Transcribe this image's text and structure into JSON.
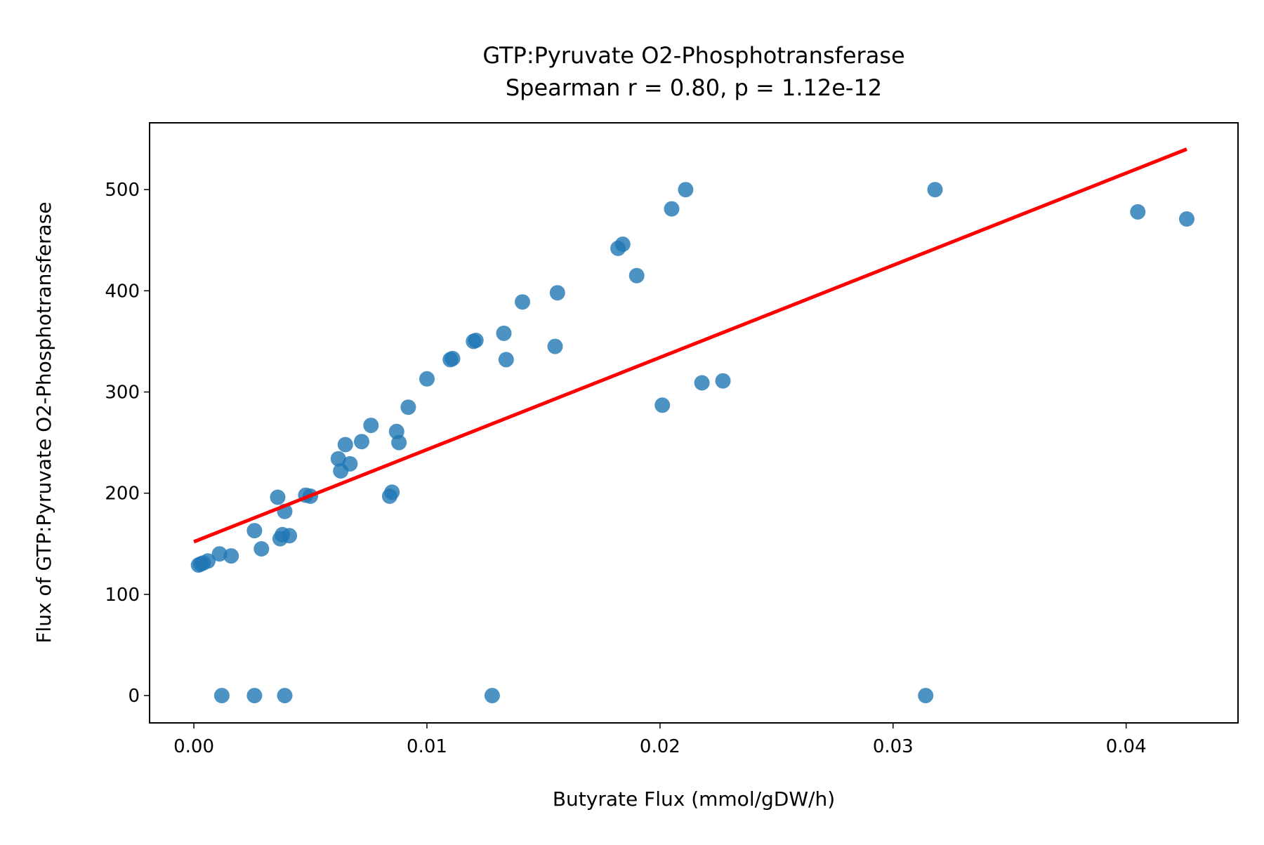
{
  "chart_data": {
    "type": "scatter",
    "title": "GTP:Pyruvate O2-Phosphotransferase",
    "subtitle": "Spearman r = 0.80, p = 1.12e-12",
    "xlabel": "Butyrate Flux (mmol/gDW/h)",
    "ylabel": "Flux of GTP:Pyruvate O2-Phosphotransferase",
    "xlim": [
      -0.0019,
      0.0448
    ],
    "ylim": [
      -27,
      566
    ],
    "x_ticks": [
      0.0,
      0.01,
      0.02,
      0.03,
      0.04
    ],
    "x_tick_labels": [
      "0.00",
      "0.01",
      "0.02",
      "0.03",
      "0.04"
    ],
    "y_ticks": [
      0,
      100,
      200,
      300,
      400,
      500
    ],
    "y_tick_labels": [
      "0",
      "100",
      "200",
      "300",
      "400",
      "500"
    ],
    "grid": false,
    "points": [
      {
        "x": 0.0002,
        "y": 129
      },
      {
        "x": 0.0003,
        "y": 130
      },
      {
        "x": 0.0004,
        "y": 131
      },
      {
        "x": 0.0006,
        "y": 133
      },
      {
        "x": 0.0011,
        "y": 140
      },
      {
        "x": 0.0016,
        "y": 138
      },
      {
        "x": 0.0026,
        "y": 163
      },
      {
        "x": 0.0029,
        "y": 145
      },
      {
        "x": 0.0036,
        "y": 196
      },
      {
        "x": 0.0037,
        "y": 155
      },
      {
        "x": 0.0038,
        "y": 159
      },
      {
        "x": 0.0039,
        "y": 182
      },
      {
        "x": 0.0041,
        "y": 158
      },
      {
        "x": 0.0048,
        "y": 198
      },
      {
        "x": 0.005,
        "y": 197
      },
      {
        "x": 0.0062,
        "y": 234
      },
      {
        "x": 0.0063,
        "y": 222
      },
      {
        "x": 0.0065,
        "y": 248
      },
      {
        "x": 0.0067,
        "y": 229
      },
      {
        "x": 0.0072,
        "y": 251
      },
      {
        "x": 0.0076,
        "y": 267
      },
      {
        "x": 0.0084,
        "y": 197
      },
      {
        "x": 0.0085,
        "y": 201
      },
      {
        "x": 0.0087,
        "y": 261
      },
      {
        "x": 0.0088,
        "y": 250
      },
      {
        "x": 0.0092,
        "y": 285
      },
      {
        "x": 0.01,
        "y": 313
      },
      {
        "x": 0.011,
        "y": 332
      },
      {
        "x": 0.0111,
        "y": 333
      },
      {
        "x": 0.012,
        "y": 350
      },
      {
        "x": 0.0121,
        "y": 351
      },
      {
        "x": 0.0133,
        "y": 358
      },
      {
        "x": 0.0134,
        "y": 332
      },
      {
        "x": 0.0141,
        "y": 389
      },
      {
        "x": 0.0155,
        "y": 345
      },
      {
        "x": 0.0156,
        "y": 398
      },
      {
        "x": 0.0182,
        "y": 442
      },
      {
        "x": 0.0184,
        "y": 446
      },
      {
        "x": 0.019,
        "y": 415
      },
      {
        "x": 0.0201,
        "y": 287
      },
      {
        "x": 0.0205,
        "y": 481
      },
      {
        "x": 0.0211,
        "y": 500
      },
      {
        "x": 0.0218,
        "y": 309
      },
      {
        "x": 0.0227,
        "y": 311
      },
      {
        "x": 0.0318,
        "y": 500
      },
      {
        "x": 0.0405,
        "y": 478
      },
      {
        "x": 0.0426,
        "y": 471
      },
      {
        "x": 0.0012,
        "y": 0
      },
      {
        "x": 0.0026,
        "y": 0
      },
      {
        "x": 0.0039,
        "y": 0
      },
      {
        "x": 0.0128,
        "y": 0
      },
      {
        "x": 0.0314,
        "y": 0
      }
    ],
    "trend_line": {
      "x": [
        0.0,
        0.0426
      ],
      "y": [
        152,
        540
      ]
    },
    "colors": {
      "points": "#1f77b4",
      "trend_line": "#ff0000",
      "axes": "#000000"
    }
  }
}
